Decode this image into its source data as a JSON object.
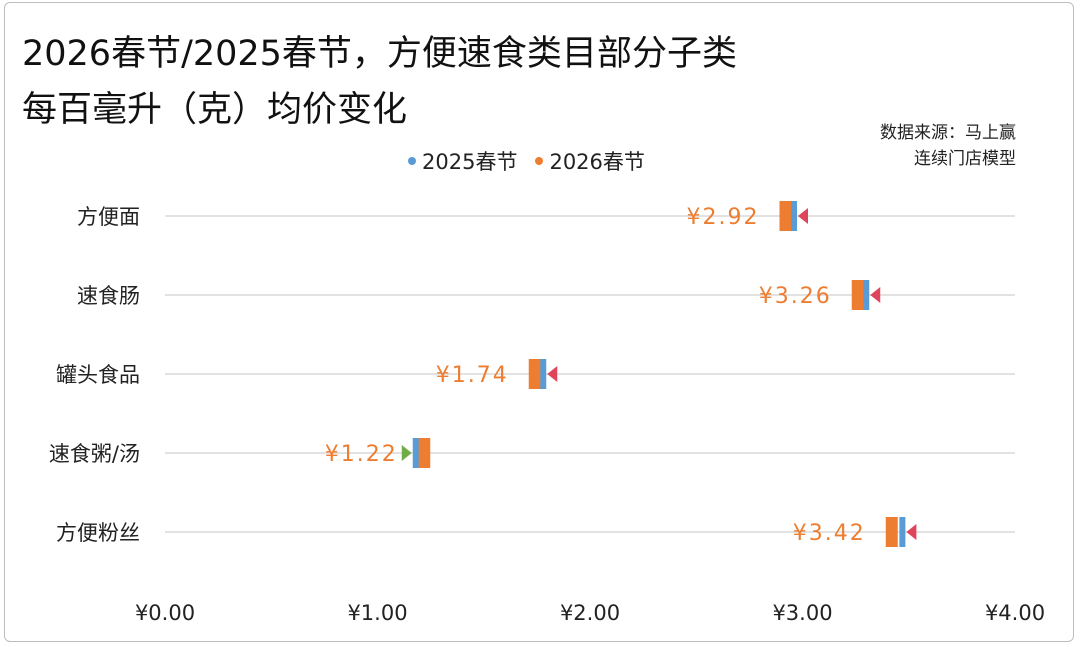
{
  "header": {
    "title_line1": "2026春节/2025春节，方便速食类目部分子类",
    "title_line2": "每百毫升（克）均价变化",
    "source_line1": "数据来源：马上赢",
    "source_line2": "连续门店模型"
  },
  "colors": {
    "series_2025": "#5b9bd5",
    "series_2026": "#ed7d31",
    "arrow_up": "#e0445a",
    "arrow_down": "#70ad47",
    "grid": "#d9d9d9"
  },
  "chart_data": {
    "type": "bar",
    "title": "2026春节/2025春节，方便速食类目部分子类每百毫升（克）均价变化",
    "xlabel": "",
    "ylabel": "",
    "xlim": [
      0,
      4
    ],
    "x_ticks": [
      "¥0.00",
      "¥1.00",
      "¥2.00",
      "¥3.00",
      "¥4.00"
    ],
    "x_tick_values": [
      0,
      1,
      2,
      3,
      4
    ],
    "grid": true,
    "legend_position": "top",
    "categories": [
      "方便面",
      "速食肠",
      "罐头食品",
      "速食粥/汤",
      "方便粉丝"
    ],
    "series": [
      {
        "name": "2025春节",
        "values": [
          2.96,
          3.3,
          1.78,
          1.18,
          3.47
        ]
      },
      {
        "name": "2026春节",
        "values": [
          2.92,
          3.26,
          1.74,
          1.22,
          3.42
        ]
      }
    ],
    "data_labels": [
      "¥2.92",
      "¥3.26",
      "¥1.74",
      "¥1.22",
      "¥3.42"
    ],
    "change_direction": [
      "down",
      "down",
      "down",
      "up",
      "down"
    ]
  }
}
